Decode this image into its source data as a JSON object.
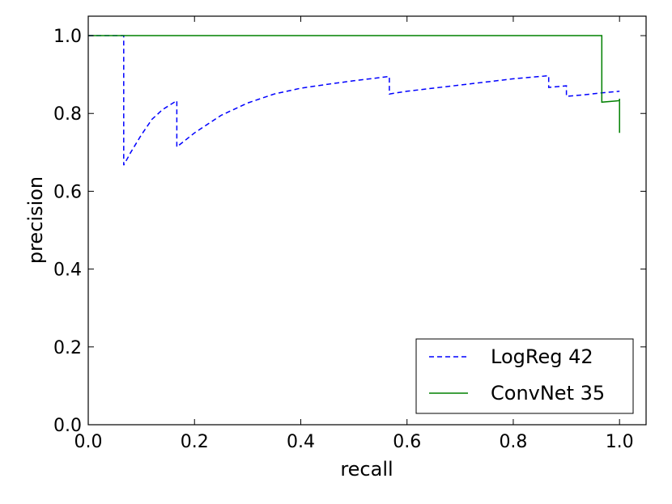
{
  "chart_data": {
    "type": "line",
    "title": "",
    "xlabel": "recall",
    "ylabel": "precision",
    "xlim": [
      0.0,
      1.05
    ],
    "ylim": [
      0.0,
      1.05
    ],
    "xticks": [
      "0.0",
      "0.2",
      "0.4",
      "0.6",
      "0.8",
      "1.0"
    ],
    "yticks": [
      "0.0",
      "0.2",
      "0.4",
      "0.6",
      "0.8",
      "1.0"
    ],
    "grid": false,
    "legend_position": "bottom-right",
    "series": [
      {
        "name": "LogReg 42",
        "color": "#0000ff",
        "style": "dashed",
        "x": [
          0.0,
          0.0667,
          0.0667,
          0.0667,
          0.08,
          0.1,
          0.12,
          0.14,
          0.1667,
          0.1667,
          0.1667,
          0.2,
          0.25,
          0.3,
          0.35,
          0.4,
          0.45,
          0.5,
          0.5667,
          0.5667,
          0.5667,
          0.6,
          0.7,
          0.8,
          0.8667,
          0.8667,
          0.8667,
          0.9,
          0.9,
          0.9333,
          0.9667,
          1.0
        ],
        "y": [
          1.0,
          1.0,
          0.667,
          0.667,
          0.7,
          0.745,
          0.785,
          0.81,
          0.833,
          0.833,
          0.714,
          0.75,
          0.795,
          0.827,
          0.85,
          0.865,
          0.875,
          0.884,
          0.895,
          0.895,
          0.85,
          0.857,
          0.873,
          0.889,
          0.897,
          0.867,
          0.867,
          0.871,
          0.844,
          0.848,
          0.853,
          0.857
        ]
      },
      {
        "name": "ConvNet 35",
        "color": "#008000",
        "style": "solid",
        "x": [
          0.0,
          0.9667,
          0.9667,
          1.0,
          1.0,
          1.0
        ],
        "y": [
          1.0,
          1.0,
          0.829,
          0.833,
          0.838,
          0.75
        ]
      }
    ]
  }
}
